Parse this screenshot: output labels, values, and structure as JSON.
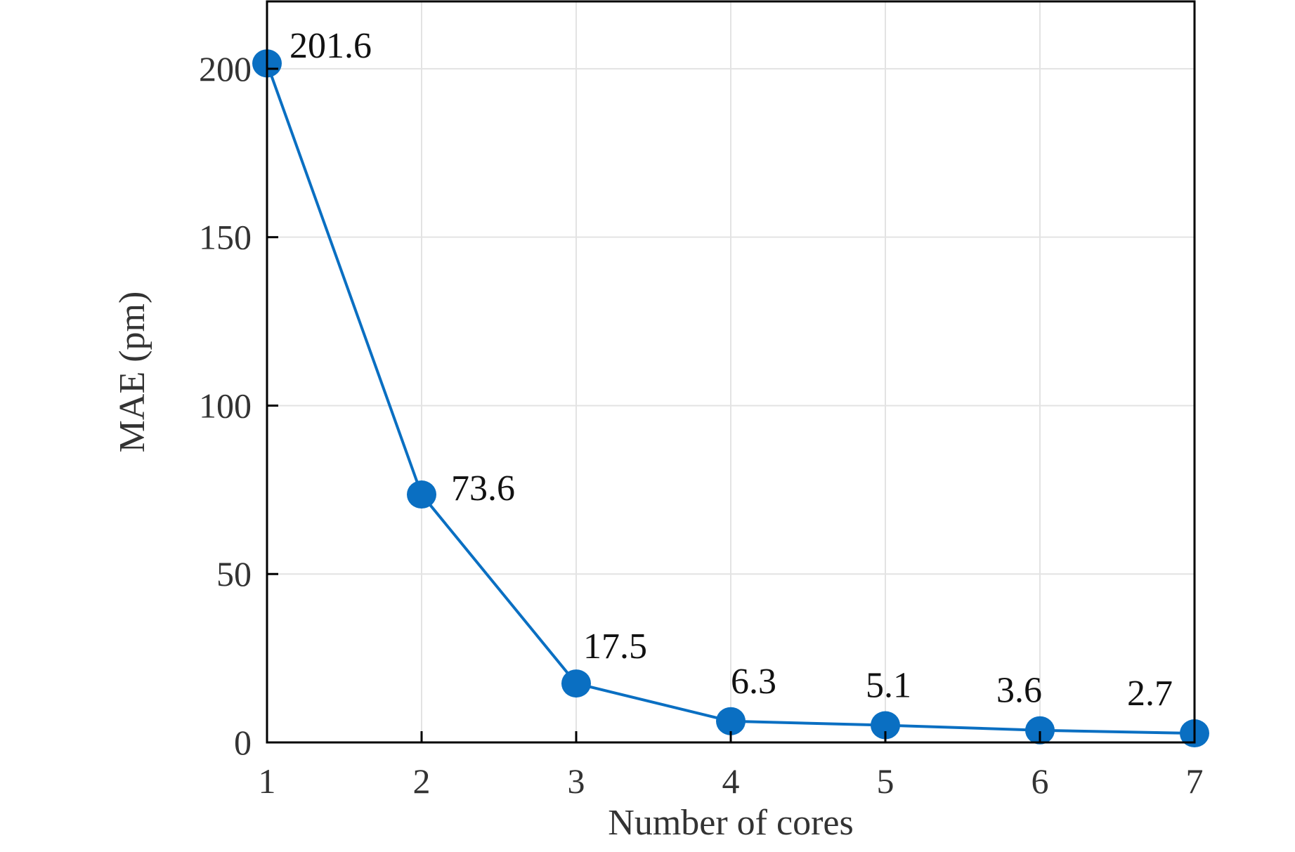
{
  "chart_data": {
    "type": "line",
    "title": "",
    "xlabel": "Number of cores",
    "ylabel": "MAE (pm)",
    "x": [
      1,
      2,
      3,
      4,
      5,
      6,
      7
    ],
    "series": [
      {
        "values": [
          201.6,
          73.6,
          17.5,
          6.3,
          5.1,
          3.6,
          2.7
        ],
        "data_labels": [
          "201.6",
          "73.6",
          "17.5",
          "6.3",
          "5.1",
          "3.6",
          "2.7"
        ],
        "color": "#0a6fc2"
      }
    ],
    "xlim": [
      1,
      7
    ],
    "ylim": [
      0,
      220
    ],
    "xticks": [
      1,
      2,
      3,
      4,
      5,
      6,
      7
    ],
    "xtick_labels": [
      "1",
      "2",
      "3",
      "4",
      "5",
      "6",
      "7"
    ],
    "yticks": [
      0,
      50,
      100,
      150,
      200
    ],
    "ytick_labels": [
      "0",
      "50",
      "100",
      "150",
      "200"
    ],
    "grid": true,
    "legend": "none"
  }
}
